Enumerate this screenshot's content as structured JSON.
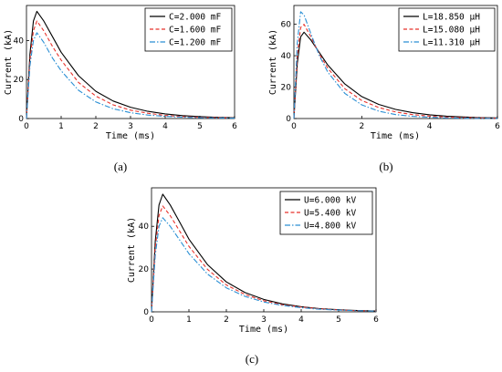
{
  "chart_data": [
    {
      "type": "line",
      "caption": "(a)",
      "xlabel": "Time (ms)",
      "ylabel": "Current (kA)",
      "xlim": [
        0,
        6
      ],
      "ylim": [
        0,
        58
      ],
      "xticks": [
        "0",
        "1",
        "2",
        "3",
        "4",
        "5",
        "6"
      ],
      "yticks": [
        "0",
        "20",
        "40"
      ],
      "ytick_values": [
        0,
        20,
        40
      ],
      "legend_position": "top-right",
      "x": [
        0,
        0.1,
        0.2,
        0.3,
        0.5,
        0.75,
        1,
        1.5,
        2,
        2.5,
        3,
        3.5,
        4,
        4.5,
        5,
        5.5,
        6
      ],
      "series": [
        {
          "name": "C=2.000 mF",
          "color": "#000000",
          "dash": "solid",
          "values": [
            0,
            33,
            50,
            55,
            50,
            42,
            34,
            22,
            14,
            9,
            5.8,
            3.7,
            2.4,
            1.5,
            1.0,
            0.6,
            0.4
          ]
        },
        {
          "name": "C=1.600 mF",
          "color": "#e8322b",
          "dash": "dashed",
          "values": [
            0,
            30,
            45,
            50,
            45,
            37,
            30,
            18.5,
            11.5,
            7,
            4.3,
            2.7,
            1.6,
            1.0,
            0.6,
            0.4,
            0.3
          ]
        },
        {
          "name": "C=1.200 mF",
          "color": "#2a8fd4",
          "dash": "dashdot",
          "values": [
            0,
            27,
            40,
            44,
            39,
            31,
            24.5,
            14.5,
            8.5,
            5,
            3,
            1.8,
            1.1,
            0.7,
            0.4,
            0.3,
            0.2
          ]
        }
      ]
    },
    {
      "type": "line",
      "caption": "(b)",
      "xlabel": "Time (ms)",
      "ylabel": "Current (kA)",
      "xlim": [
        0,
        6
      ],
      "ylim": [
        0,
        72
      ],
      "xticks": [
        "0",
        "2",
        "4",
        "6"
      ],
      "xtick_values": [
        0,
        2,
        4,
        6
      ],
      "yticks": [
        "0",
        "20",
        "40",
        "60"
      ],
      "ytick_values": [
        0,
        20,
        40,
        60
      ],
      "legend_position": "top-right",
      "x": [
        0,
        0.1,
        0.2,
        0.3,
        0.5,
        0.75,
        1,
        1.5,
        2,
        2.5,
        3,
        3.5,
        4,
        4.5,
        5,
        5.5,
        6
      ],
      "series": [
        {
          "name": "L=18.850 μH",
          "color": "#000000",
          "dash": "solid",
          "values": [
            0,
            35,
            52,
            55,
            50,
            42,
            34,
            22,
            14,
            9,
            5.8,
            3.7,
            2.4,
            1.5,
            1.0,
            0.6,
            0.4
          ]
        },
        {
          "name": "L=15.080 μH",
          "color": "#e8322b",
          "dash": "dashed",
          "values": [
            0,
            40,
            58,
            60,
            52,
            41,
            32,
            19,
            11.5,
            7,
            4.2,
            2.5,
            1.5,
            0.9,
            0.6,
            0.4,
            0.2
          ]
        },
        {
          "name": "L=11.310 μH",
          "color": "#2a8fd4",
          "dash": "dashdot",
          "values": [
            0,
            48,
            68,
            66,
            54,
            40,
            29.5,
            16,
            8.7,
            4.7,
            2.5,
            1.4,
            0.8,
            0.4,
            0.2,
            0.1,
            0.1
          ]
        }
      ]
    },
    {
      "type": "line",
      "caption": "(c)",
      "xlabel": "Time (ms)",
      "ylabel": "Current (kA)",
      "xlim": [
        0,
        6
      ],
      "ylim": [
        0,
        58
      ],
      "xticks": [
        "0",
        "1",
        "2",
        "3",
        "4",
        "5",
        "6"
      ],
      "yticks": [
        "0",
        "20",
        "40"
      ],
      "ytick_values": [
        0,
        20,
        40
      ],
      "legend_position": "top-right",
      "x": [
        0,
        0.1,
        0.2,
        0.3,
        0.5,
        0.75,
        1,
        1.5,
        2,
        2.5,
        3,
        3.5,
        4,
        4.5,
        5,
        5.5,
        6
      ],
      "series": [
        {
          "name": "U=6.000 kV",
          "color": "#000000",
          "dash": "solid",
          "values": [
            0,
            33,
            50,
            55,
            50,
            42,
            34,
            22,
            14,
            9,
            5.8,
            3.7,
            2.4,
            1.5,
            1.0,
            0.6,
            0.4
          ]
        },
        {
          "name": "U=5.400 kV",
          "color": "#e8322b",
          "dash": "dashed",
          "values": [
            0,
            30,
            45,
            49.5,
            45,
            37.8,
            30.6,
            19.8,
            12.6,
            8.1,
            5.2,
            3.3,
            2.2,
            1.4,
            0.9,
            0.5,
            0.4
          ]
        },
        {
          "name": "U=4.800 kV",
          "color": "#2a8fd4",
          "dash": "dashdot",
          "values": [
            0,
            26.4,
            40,
            44,
            40,
            33.6,
            27.2,
            17.6,
            11.2,
            7.2,
            4.6,
            3.0,
            1.9,
            1.2,
            0.8,
            0.5,
            0.3
          ]
        }
      ]
    }
  ]
}
